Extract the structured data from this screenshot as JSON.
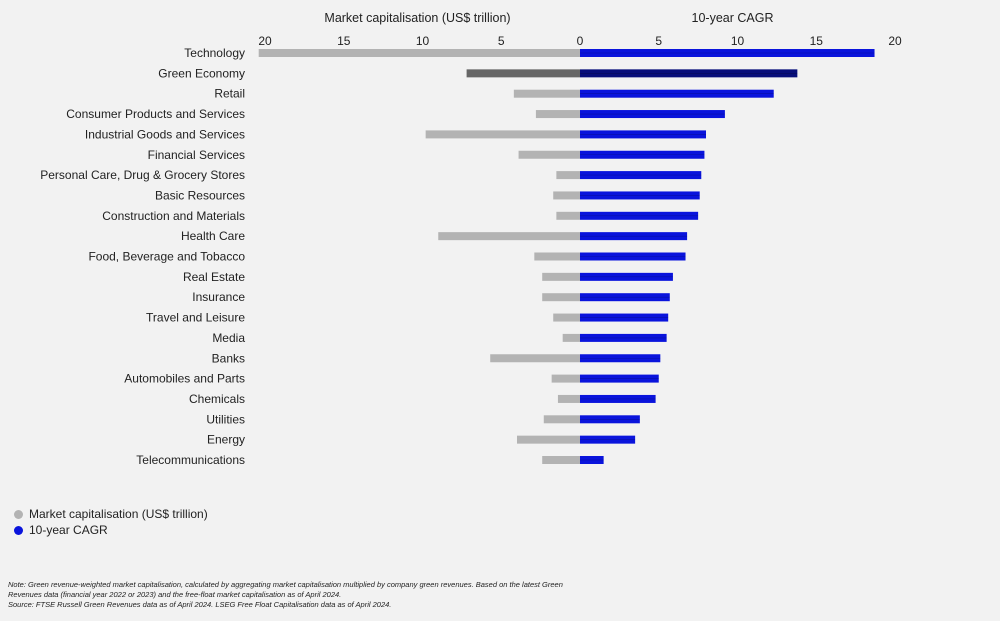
{
  "chart_data": {
    "type": "bar",
    "layout": "diverging-horizontal",
    "categories": [
      "Technology",
      "Green Economy",
      "Retail",
      "Consumer Products and Services",
      "Industrial Goods and Services",
      "Financial Services",
      "Personal Care, Drug & Grocery Stores",
      "Basic Resources",
      "Construction and Materials",
      "Health Care",
      "Food, Beverage and Tobacco",
      "Real Estate",
      "Insurance",
      "Travel and Leisure",
      "Media",
      "Banks",
      "Automobiles and Parts",
      "Chemicals",
      "Utilities",
      "Energy",
      "Telecommunications"
    ],
    "series": [
      {
        "name": "Market capitalisation (US$ trillion)",
        "side": "left",
        "color": "#b3b3b3",
        "highlight_color": "#666666",
        "values": [
          20.4,
          7.2,
          4.2,
          2.8,
          9.8,
          3.9,
          1.5,
          1.7,
          1.5,
          9.0,
          2.9,
          2.4,
          2.4,
          1.7,
          1.1,
          5.7,
          1.8,
          1.4,
          2.3,
          4.0,
          2.4
        ]
      },
      {
        "name": "10-year CAGR",
        "side": "right",
        "color": "#0a14dc",
        "highlight_color": "#070e7a",
        "values": [
          18.7,
          13.8,
          12.3,
          9.2,
          8.0,
          7.9,
          7.7,
          7.6,
          7.5,
          6.8,
          6.7,
          5.9,
          5.7,
          5.6,
          5.5,
          5.1,
          5.0,
          4.8,
          3.8,
          3.5,
          1.5
        ]
      }
    ],
    "highlight_category": "Green Economy",
    "left_axis_title": "Market capitalisation (US$ trillion)",
    "right_axis_title": "10-year CAGR",
    "left_ticks": [
      "20",
      "15",
      "10",
      "5",
      "0"
    ],
    "right_ticks": [
      "5",
      "10",
      "15",
      "20"
    ],
    "left_range": [
      0,
      20
    ],
    "right_range": [
      0,
      20
    ],
    "grid": false,
    "legend_position": "bottom-left"
  },
  "legend": [
    {
      "label": "Market capitalisation (US$ trillion)",
      "color": "#b3b3b3"
    },
    {
      "label": "10-year CAGR",
      "color": "#0a14dc"
    }
  ],
  "notes": {
    "line1": "Note: Green revenue-weighted market capitalisation, calculated by aggregating market capitalisation multiplied by company green revenues. Based on the latest Green",
    "line2": "Revenues data (financial year 2022 or 2023) and the free-float market capitalisation as of April 2024.",
    "line3": "Source: FTSE Russell Green Revenues data as of April 2024. LSEG Free Float Capitalisation data as of April 2024."
  }
}
